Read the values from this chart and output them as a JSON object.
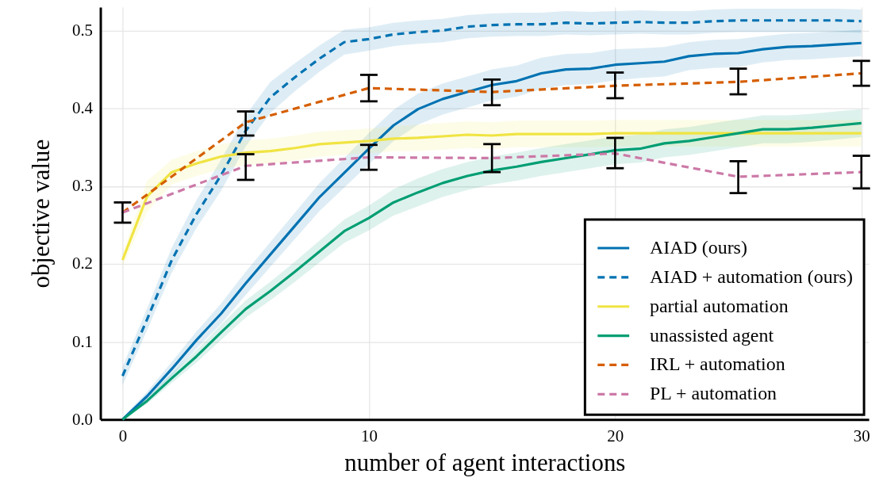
{
  "chart_data": {
    "type": "line",
    "xlabel": "number of agent interactions",
    "ylabel": "objective value",
    "xlim": [
      -0.9,
      30.3
    ],
    "ylim": [
      0,
      0.53
    ],
    "xticks": [
      0,
      10,
      20,
      30
    ],
    "yticks": [
      {
        "value": 0,
        "label": "0.0"
      },
      0.1,
      0.2,
      0.3,
      0.4,
      0.5
    ],
    "grid": true,
    "legend": "bottom right",
    "series": [
      {
        "name": "AIAD (ours)",
        "color": "#0072b2",
        "line_style": "solid",
        "x": [
          0,
          1,
          2,
          3,
          4,
          5,
          6,
          7,
          8,
          9,
          10,
          11,
          12,
          13,
          14,
          15,
          16,
          17,
          18,
          19,
          20,
          21,
          22,
          23,
          24,
          25,
          26,
          27,
          28,
          29,
          30
        ],
        "values": [
          0.0,
          0.03,
          0.065,
          0.102,
          0.136,
          0.175,
          0.212,
          0.249,
          0.286,
          0.317,
          0.348,
          0.378,
          0.399,
          0.412,
          0.421,
          0.43,
          0.435,
          0.445,
          0.45,
          0.451,
          0.456,
          0.458,
          0.46,
          0.467,
          0.47,
          0.471,
          0.476,
          0.479,
          0.48,
          0.482,
          0.484
        ],
        "lower": [
          0.0,
          0.024,
          0.056,
          0.091,
          0.123,
          0.16,
          0.196,
          0.232,
          0.268,
          0.298,
          0.328,
          0.358,
          0.379,
          0.392,
          0.401,
          0.41,
          0.415,
          0.425,
          0.43,
          0.431,
          0.436,
          0.439,
          0.441,
          0.449,
          0.452,
          0.453,
          0.459,
          0.462,
          0.463,
          0.465,
          0.467
        ],
        "upper": [
          0.002,
          0.036,
          0.074,
          0.113,
          0.149,
          0.19,
          0.228,
          0.266,
          0.304,
          0.336,
          0.368,
          0.398,
          0.419,
          0.432,
          0.441,
          0.45,
          0.455,
          0.465,
          0.47,
          0.471,
          0.476,
          0.477,
          0.479,
          0.485,
          0.488,
          0.489,
          0.493,
          0.496,
          0.497,
          0.499,
          0.501
        ]
      },
      {
        "name": "AIAD + automation (ours)",
        "color": "#0072b2",
        "line_style": "dashed",
        "x": [
          0,
          1,
          2,
          3,
          4,
          5,
          6,
          7,
          8,
          9,
          10,
          11,
          12,
          13,
          14,
          15,
          16,
          17,
          18,
          19,
          20,
          21,
          22,
          23,
          24,
          25,
          26,
          27,
          28,
          29,
          30
        ],
        "values": [
          0.056,
          0.129,
          0.205,
          0.264,
          0.314,
          0.371,
          0.414,
          0.44,
          0.464,
          0.485,
          0.489,
          0.495,
          0.498,
          0.5,
          0.505,
          0.507,
          0.508,
          0.508,
          0.51,
          0.509,
          0.51,
          0.511,
          0.51,
          0.51,
          0.512,
          0.513,
          0.513,
          0.513,
          0.513,
          0.513,
          0.512
        ],
        "lower": [
          0.044,
          0.115,
          0.189,
          0.246,
          0.294,
          0.351,
          0.394,
          0.422,
          0.447,
          0.469,
          0.474,
          0.48,
          0.483,
          0.485,
          0.49,
          0.492,
          0.493,
          0.493,
          0.495,
          0.494,
          0.495,
          0.496,
          0.495,
          0.495,
          0.497,
          0.498,
          0.498,
          0.498,
          0.498,
          0.498,
          0.497
        ],
        "upper": [
          0.068,
          0.143,
          0.221,
          0.282,
          0.334,
          0.391,
          0.434,
          0.458,
          0.481,
          0.501,
          0.504,
          0.51,
          0.513,
          0.515,
          0.52,
          0.522,
          0.523,
          0.523,
          0.525,
          0.524,
          0.525,
          0.526,
          0.525,
          0.525,
          0.527,
          0.528,
          0.528,
          0.528,
          0.528,
          0.528,
          0.527
        ]
      },
      {
        "name": "partial automation",
        "color": "#f0e442",
        "line_style": "solid",
        "x": [
          0,
          1,
          2,
          3,
          4,
          5,
          6,
          7,
          8,
          9,
          10,
          11,
          12,
          13,
          14,
          15,
          16,
          17,
          18,
          19,
          20,
          21,
          22,
          23,
          24,
          25,
          26,
          27,
          28,
          29,
          30
        ],
        "values": [
          0.205,
          0.287,
          0.318,
          0.329,
          0.338,
          0.343,
          0.345,
          0.349,
          0.354,
          0.356,
          0.358,
          0.361,
          0.362,
          0.364,
          0.366,
          0.365,
          0.367,
          0.367,
          0.367,
          0.367,
          0.368,
          0.368,
          0.368,
          0.368,
          0.368,
          0.368,
          0.368,
          0.368,
          0.368,
          0.368,
          0.368
        ],
        "lower": [
          0.197,
          0.267,
          0.302,
          0.313,
          0.322,
          0.327,
          0.329,
          0.333,
          0.338,
          0.34,
          0.342,
          0.345,
          0.345,
          0.347,
          0.349,
          0.348,
          0.35,
          0.35,
          0.35,
          0.35,
          0.351,
          0.351,
          0.351,
          0.351,
          0.351,
          0.351,
          0.351,
          0.351,
          0.351,
          0.351,
          0.351
        ],
        "upper": [
          0.213,
          0.307,
          0.334,
          0.345,
          0.354,
          0.359,
          0.361,
          0.365,
          0.37,
          0.372,
          0.374,
          0.377,
          0.379,
          0.381,
          0.383,
          0.382,
          0.384,
          0.384,
          0.384,
          0.384,
          0.385,
          0.385,
          0.385,
          0.385,
          0.385,
          0.385,
          0.385,
          0.385,
          0.385,
          0.385,
          0.385
        ]
      },
      {
        "name": "unassisted agent",
        "color": "#009e73",
        "line_style": "solid",
        "x": [
          0,
          1,
          2,
          3,
          4,
          5,
          6,
          7,
          8,
          9,
          10,
          11,
          12,
          13,
          14,
          15,
          16,
          17,
          18,
          19,
          20,
          21,
          22,
          23,
          24,
          25,
          26,
          27,
          28,
          29,
          30
        ],
        "values": [
          0.0,
          0.024,
          0.053,
          0.081,
          0.112,
          0.142,
          0.165,
          0.19,
          0.216,
          0.242,
          0.259,
          0.279,
          0.292,
          0.304,
          0.313,
          0.32,
          0.325,
          0.331,
          0.336,
          0.341,
          0.346,
          0.348,
          0.355,
          0.358,
          0.363,
          0.368,
          0.373,
          0.373,
          0.375,
          0.378,
          0.381
        ],
        "lower": [
          0.0,
          0.02,
          0.047,
          0.073,
          0.102,
          0.131,
          0.153,
          0.177,
          0.202,
          0.227,
          0.243,
          0.262,
          0.274,
          0.286,
          0.295,
          0.302,
          0.307,
          0.313,
          0.318,
          0.323,
          0.328,
          0.33,
          0.337,
          0.34,
          0.345,
          0.35,
          0.355,
          0.355,
          0.357,
          0.36,
          0.363
        ],
        "upper": [
          0.0,
          0.028,
          0.059,
          0.089,
          0.122,
          0.153,
          0.177,
          0.203,
          0.23,
          0.257,
          0.275,
          0.296,
          0.31,
          0.322,
          0.331,
          0.338,
          0.343,
          0.349,
          0.354,
          0.359,
          0.364,
          0.366,
          0.373,
          0.376,
          0.381,
          0.386,
          0.391,
          0.391,
          0.393,
          0.396,
          0.399
        ]
      },
      {
        "name": "IRL + automation",
        "color": "#d55e00",
        "line_style": "dashed",
        "x": [
          0,
          5,
          10,
          15,
          20,
          25,
          30
        ],
        "values": [
          0.266,
          0.382,
          0.426,
          0.421,
          0.429,
          0.434,
          0.445
        ],
        "errors": [
          [
            0.253,
            0.279
          ],
          [
            0.365,
            0.396
          ],
          [
            0.409,
            0.443
          ],
          [
            0.404,
            0.437
          ],
          [
            0.413,
            0.446
          ],
          [
            0.418,
            0.451
          ],
          [
            0.429,
            0.461
          ]
        ]
      },
      {
        "name": "PL + automation",
        "color": "#cc79a7",
        "line_style": "dashed",
        "x": [
          0,
          5,
          10,
          15,
          20,
          25,
          30
        ],
        "values": [
          0.266,
          0.326,
          0.337,
          0.336,
          0.342,
          0.312,
          0.318
        ],
        "errors": [
          null,
          [
            0.308,
            0.341
          ],
          [
            0.321,
            0.353
          ],
          [
            0.318,
            0.354
          ],
          [
            0.323,
            0.362
          ],
          [
            0.291,
            0.332
          ],
          [
            0.297,
            0.339
          ]
        ]
      }
    ]
  }
}
